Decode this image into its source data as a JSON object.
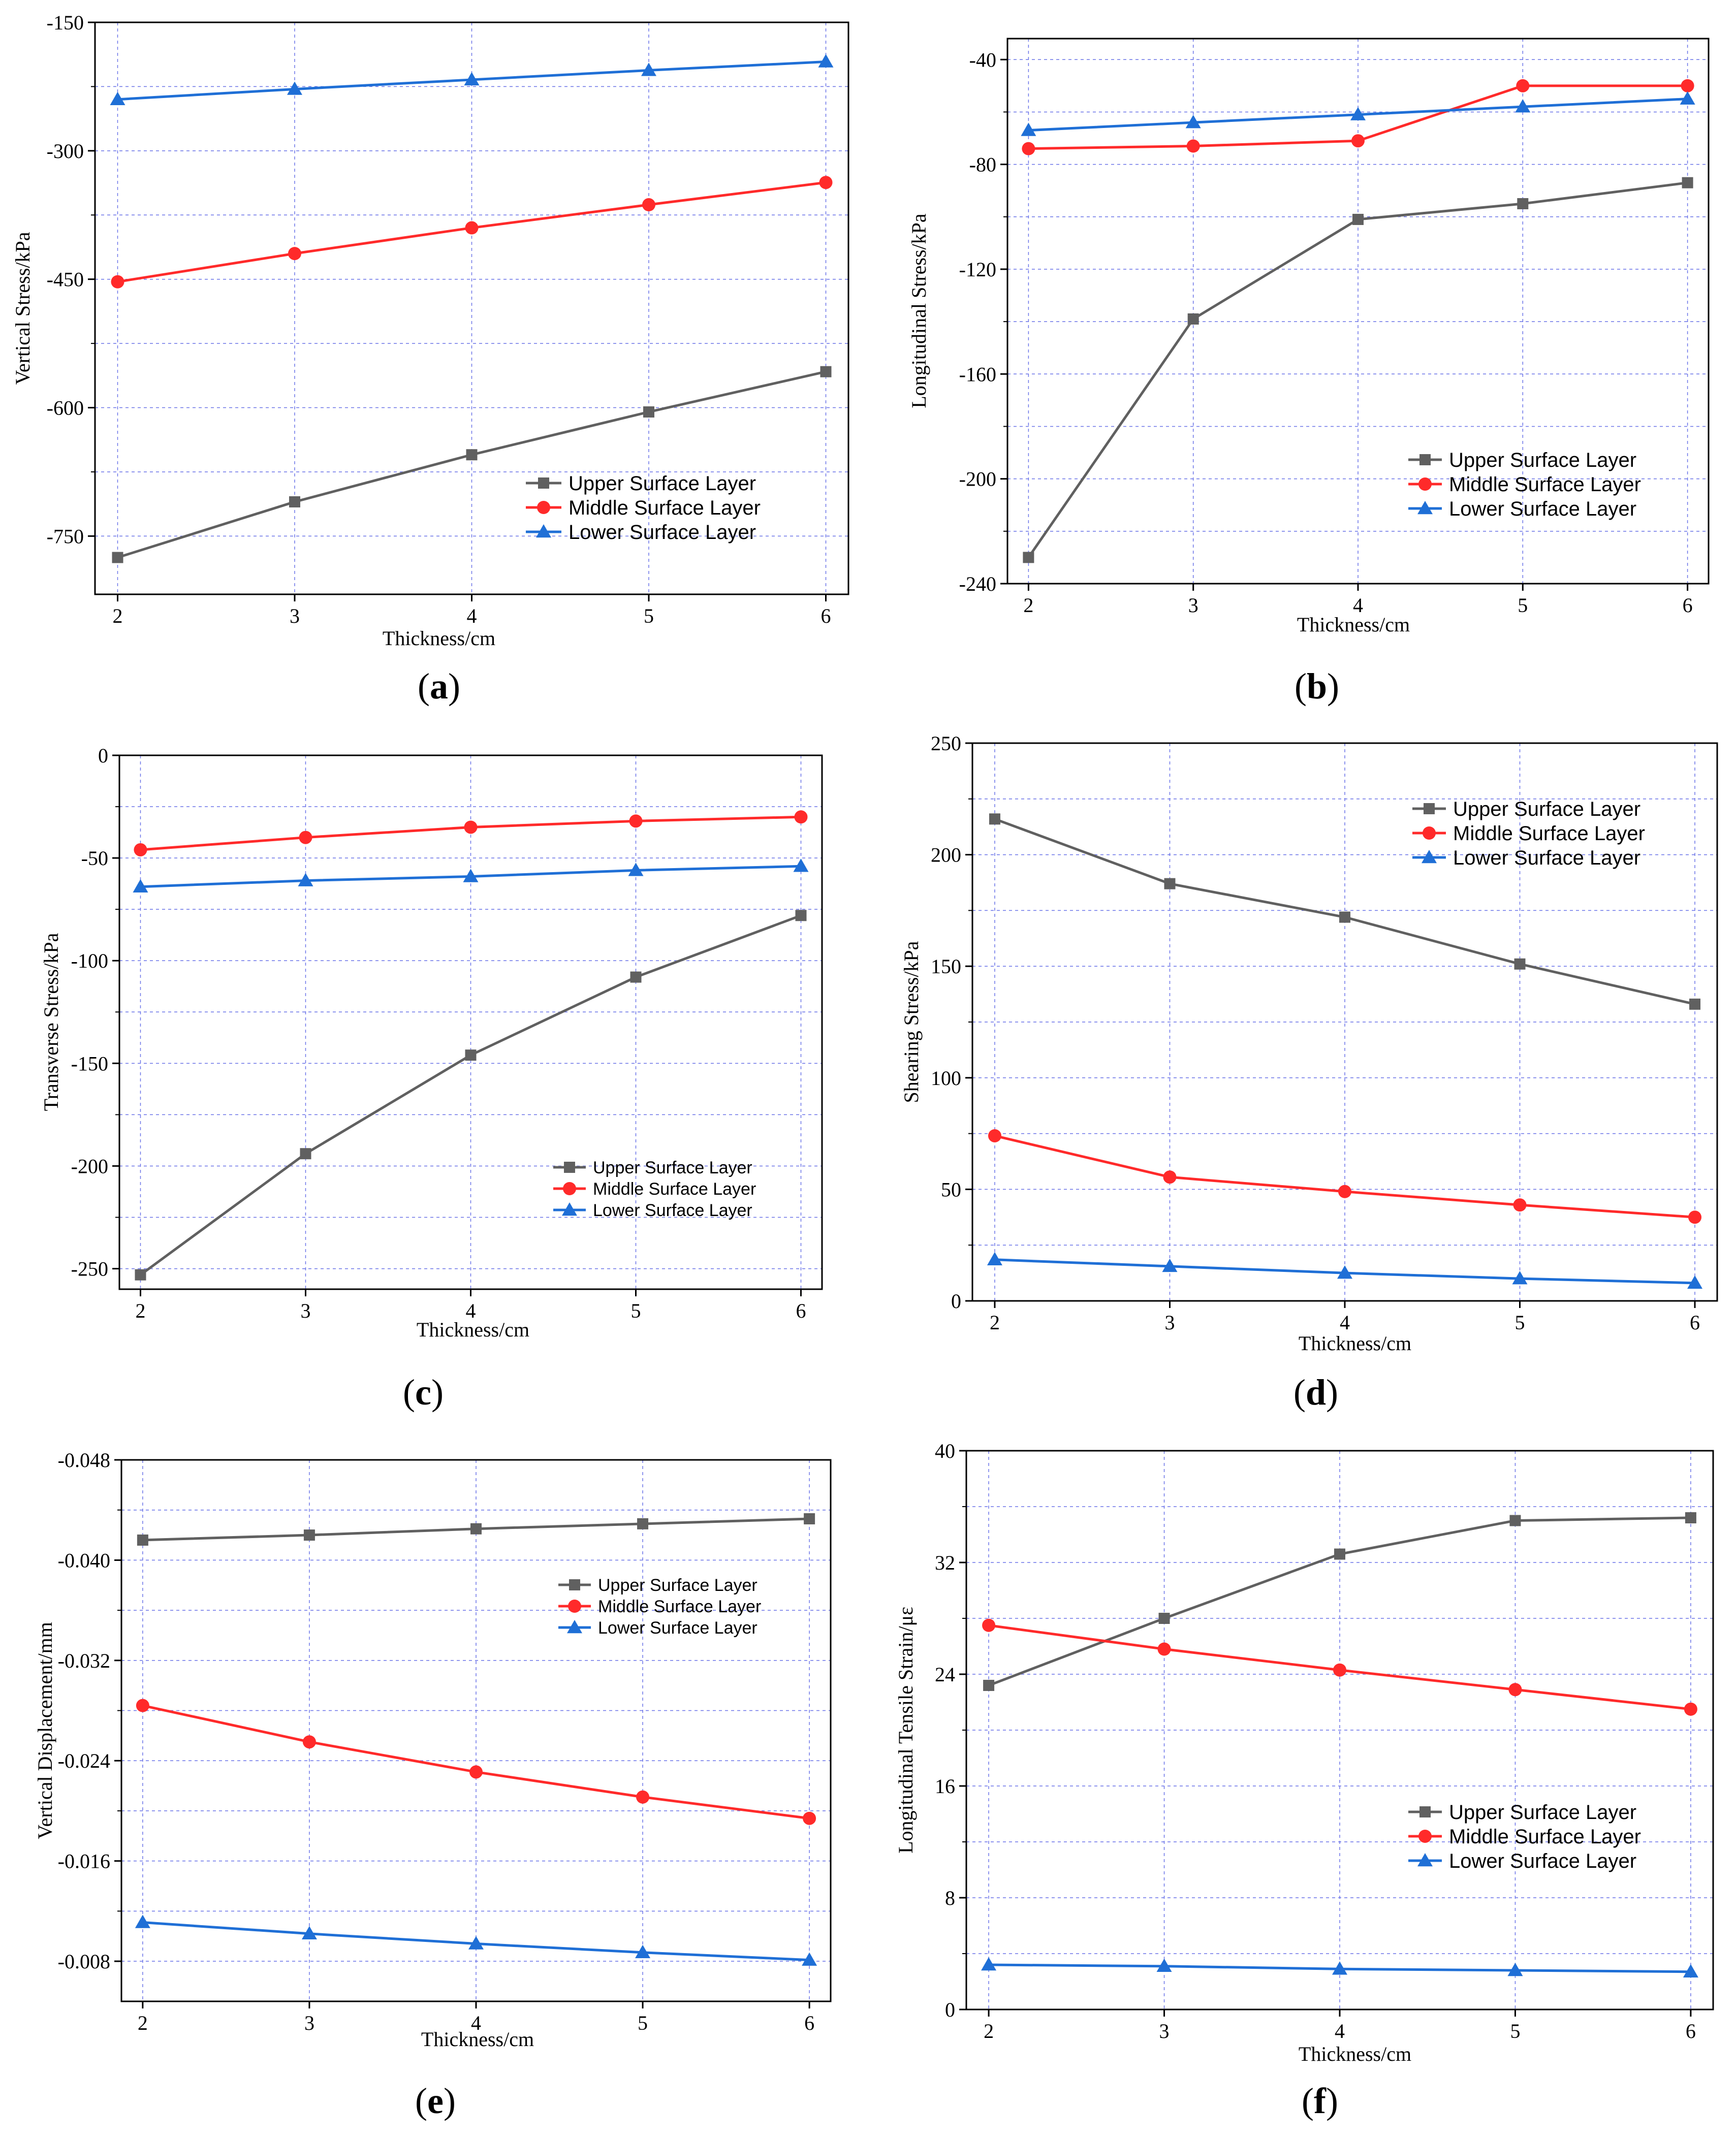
{
  "colors": {
    "upper": "#606060",
    "middle": "#ff2a2a",
    "lower": "#1f6fd6",
    "grid": "#6b74e8"
  },
  "chart_data": [
    {
      "type": "line",
      "panel": "a",
      "xlabel": "Thickness/cm",
      "ylabel": "Vertical Stress/kPa",
      "x": [
        2,
        3,
        4,
        5,
        6
      ],
      "ylim": [
        -818,
        -150
      ],
      "yticks": [
        -150,
        -300,
        -450,
        -600,
        -750
      ],
      "series": [
        {
          "name": "Upper  Surface Layer",
          "marker": "square",
          "values": [
            -775,
            -710,
            -655,
            -605,
            -558
          ]
        },
        {
          "name": "Middle Surface Layer",
          "marker": "circle",
          "values": [
            -453,
            -420,
            -390,
            -363,
            -337
          ]
        },
        {
          "name": "Lower  Surface Layer",
          "marker": "triangle",
          "values": [
            -240,
            -228,
            -217,
            -206,
            -196
          ]
        }
      ]
    },
    {
      "type": "line",
      "panel": "b",
      "xlabel": "Thickness/cm",
      "ylabel": "Longitudinal Stress/kPa",
      "x": [
        2,
        3,
        4,
        5,
        6
      ],
      "ylim": [
        -240,
        -32
      ],
      "yticks": [
        -40,
        -80,
        -120,
        -160,
        -200,
        -240
      ],
      "series": [
        {
          "name": "Upper  Surface Layer",
          "marker": "square",
          "values": [
            -230,
            -139,
            -101,
            -95,
            -87
          ]
        },
        {
          "name": "Middle Surface Layer",
          "marker": "circle",
          "values": [
            -74,
            -73,
            -71,
            -50,
            -50
          ]
        },
        {
          "name": "Lower  Surface Layer",
          "marker": "triangle",
          "values": [
            -67,
            -64,
            -61,
            -58,
            -55
          ]
        }
      ]
    },
    {
      "type": "line",
      "panel": "c",
      "xlabel": "Thickness/cm",
      "ylabel": "Transverse Stress/kPa",
      "x": [
        2,
        3,
        4,
        5,
        6
      ],
      "ylim": [
        -260,
        0
      ],
      "yticks": [
        0,
        -50,
        -100,
        -150,
        -200,
        -250
      ],
      "series": [
        {
          "name": "Upper  Surface Layer",
          "marker": "square",
          "values": [
            -253,
            -194,
            -146,
            -108,
            -78
          ]
        },
        {
          "name": "Middle Surface Layer",
          "marker": "circle",
          "values": [
            -46,
            -40,
            -35,
            -32,
            -30
          ]
        },
        {
          "name": "Lower  Surface Layer",
          "marker": "triangle",
          "values": [
            -64,
            -61,
            -59,
            -56,
            -54
          ]
        }
      ]
    },
    {
      "type": "line",
      "panel": "d",
      "xlabel": "Thickness/cm",
      "ylabel": "Shearing Stress/kPa",
      "x": [
        2,
        3,
        4,
        5,
        6
      ],
      "ylim": [
        0,
        250
      ],
      "yticks": [
        0,
        50,
        100,
        150,
        200,
        250
      ],
      "series": [
        {
          "name": "Upper  Surface Layer",
          "marker": "square",
          "values": [
            216,
            187,
            172,
            151,
            133
          ]
        },
        {
          "name": "Middle Surface Layer",
          "marker": "circle",
          "values": [
            74,
            55.5,
            49,
            43,
            37.5
          ]
        },
        {
          "name": "Lower  Surface Layer",
          "marker": "triangle",
          "values": [
            18.5,
            15.5,
            12.5,
            10,
            8
          ]
        }
      ]
    },
    {
      "type": "line",
      "panel": "e",
      "xlabel": "Thickness/cm",
      "ylabel": "Vertical Displacement/mm",
      "x": [
        2,
        3,
        4,
        5,
        6
      ],
      "ylim": [
        -0.0048,
        -0.048
      ],
      "yticks": [
        -0.048,
        -0.04,
        -0.032,
        -0.024,
        -0.016,
        -0.008
      ],
      "ytick_labels": [
        "-0.048",
        "-0.040",
        "-0.032",
        "-0.024",
        "-0.016",
        "-0.008"
      ],
      "series": [
        {
          "name": "Upper  Surface Layer",
          "marker": "square",
          "values": [
            -0.0416,
            -0.042,
            -0.0425,
            -0.0429,
            -0.0433
          ]
        },
        {
          "name": "Middle Surface Layer",
          "marker": "circle",
          "values": [
            -0.0284,
            -0.0255,
            -0.0231,
            -0.0211,
            -0.0194
          ]
        },
        {
          "name": "Lower  Surface Layer",
          "marker": "triangle",
          "values": [
            -0.0111,
            -0.0102,
            -0.0094,
            -0.0087,
            -0.0081
          ]
        }
      ]
    },
    {
      "type": "line",
      "panel": "f",
      "xlabel": "Thickness/cm",
      "ylabel": "Longitudinal Tensile Strain/με",
      "x": [
        2,
        3,
        4,
        5,
        6
      ],
      "ylim": [
        0,
        40
      ],
      "yticks": [
        0,
        8,
        16,
        24,
        32,
        40
      ],
      "series": [
        {
          "name": "Upper  Surface Layer",
          "marker": "square",
          "values": [
            23.2,
            28,
            32.6,
            35,
            35.2
          ]
        },
        {
          "name": "Middle Surface Layer",
          "marker": "circle",
          "values": [
            27.5,
            25.8,
            24.3,
            22.9,
            21.5
          ]
        },
        {
          "name": "Lower  Surface Layer",
          "marker": "triangle",
          "values": [
            3.2,
            3.1,
            2.9,
            2.8,
            2.7
          ]
        }
      ]
    }
  ]
}
